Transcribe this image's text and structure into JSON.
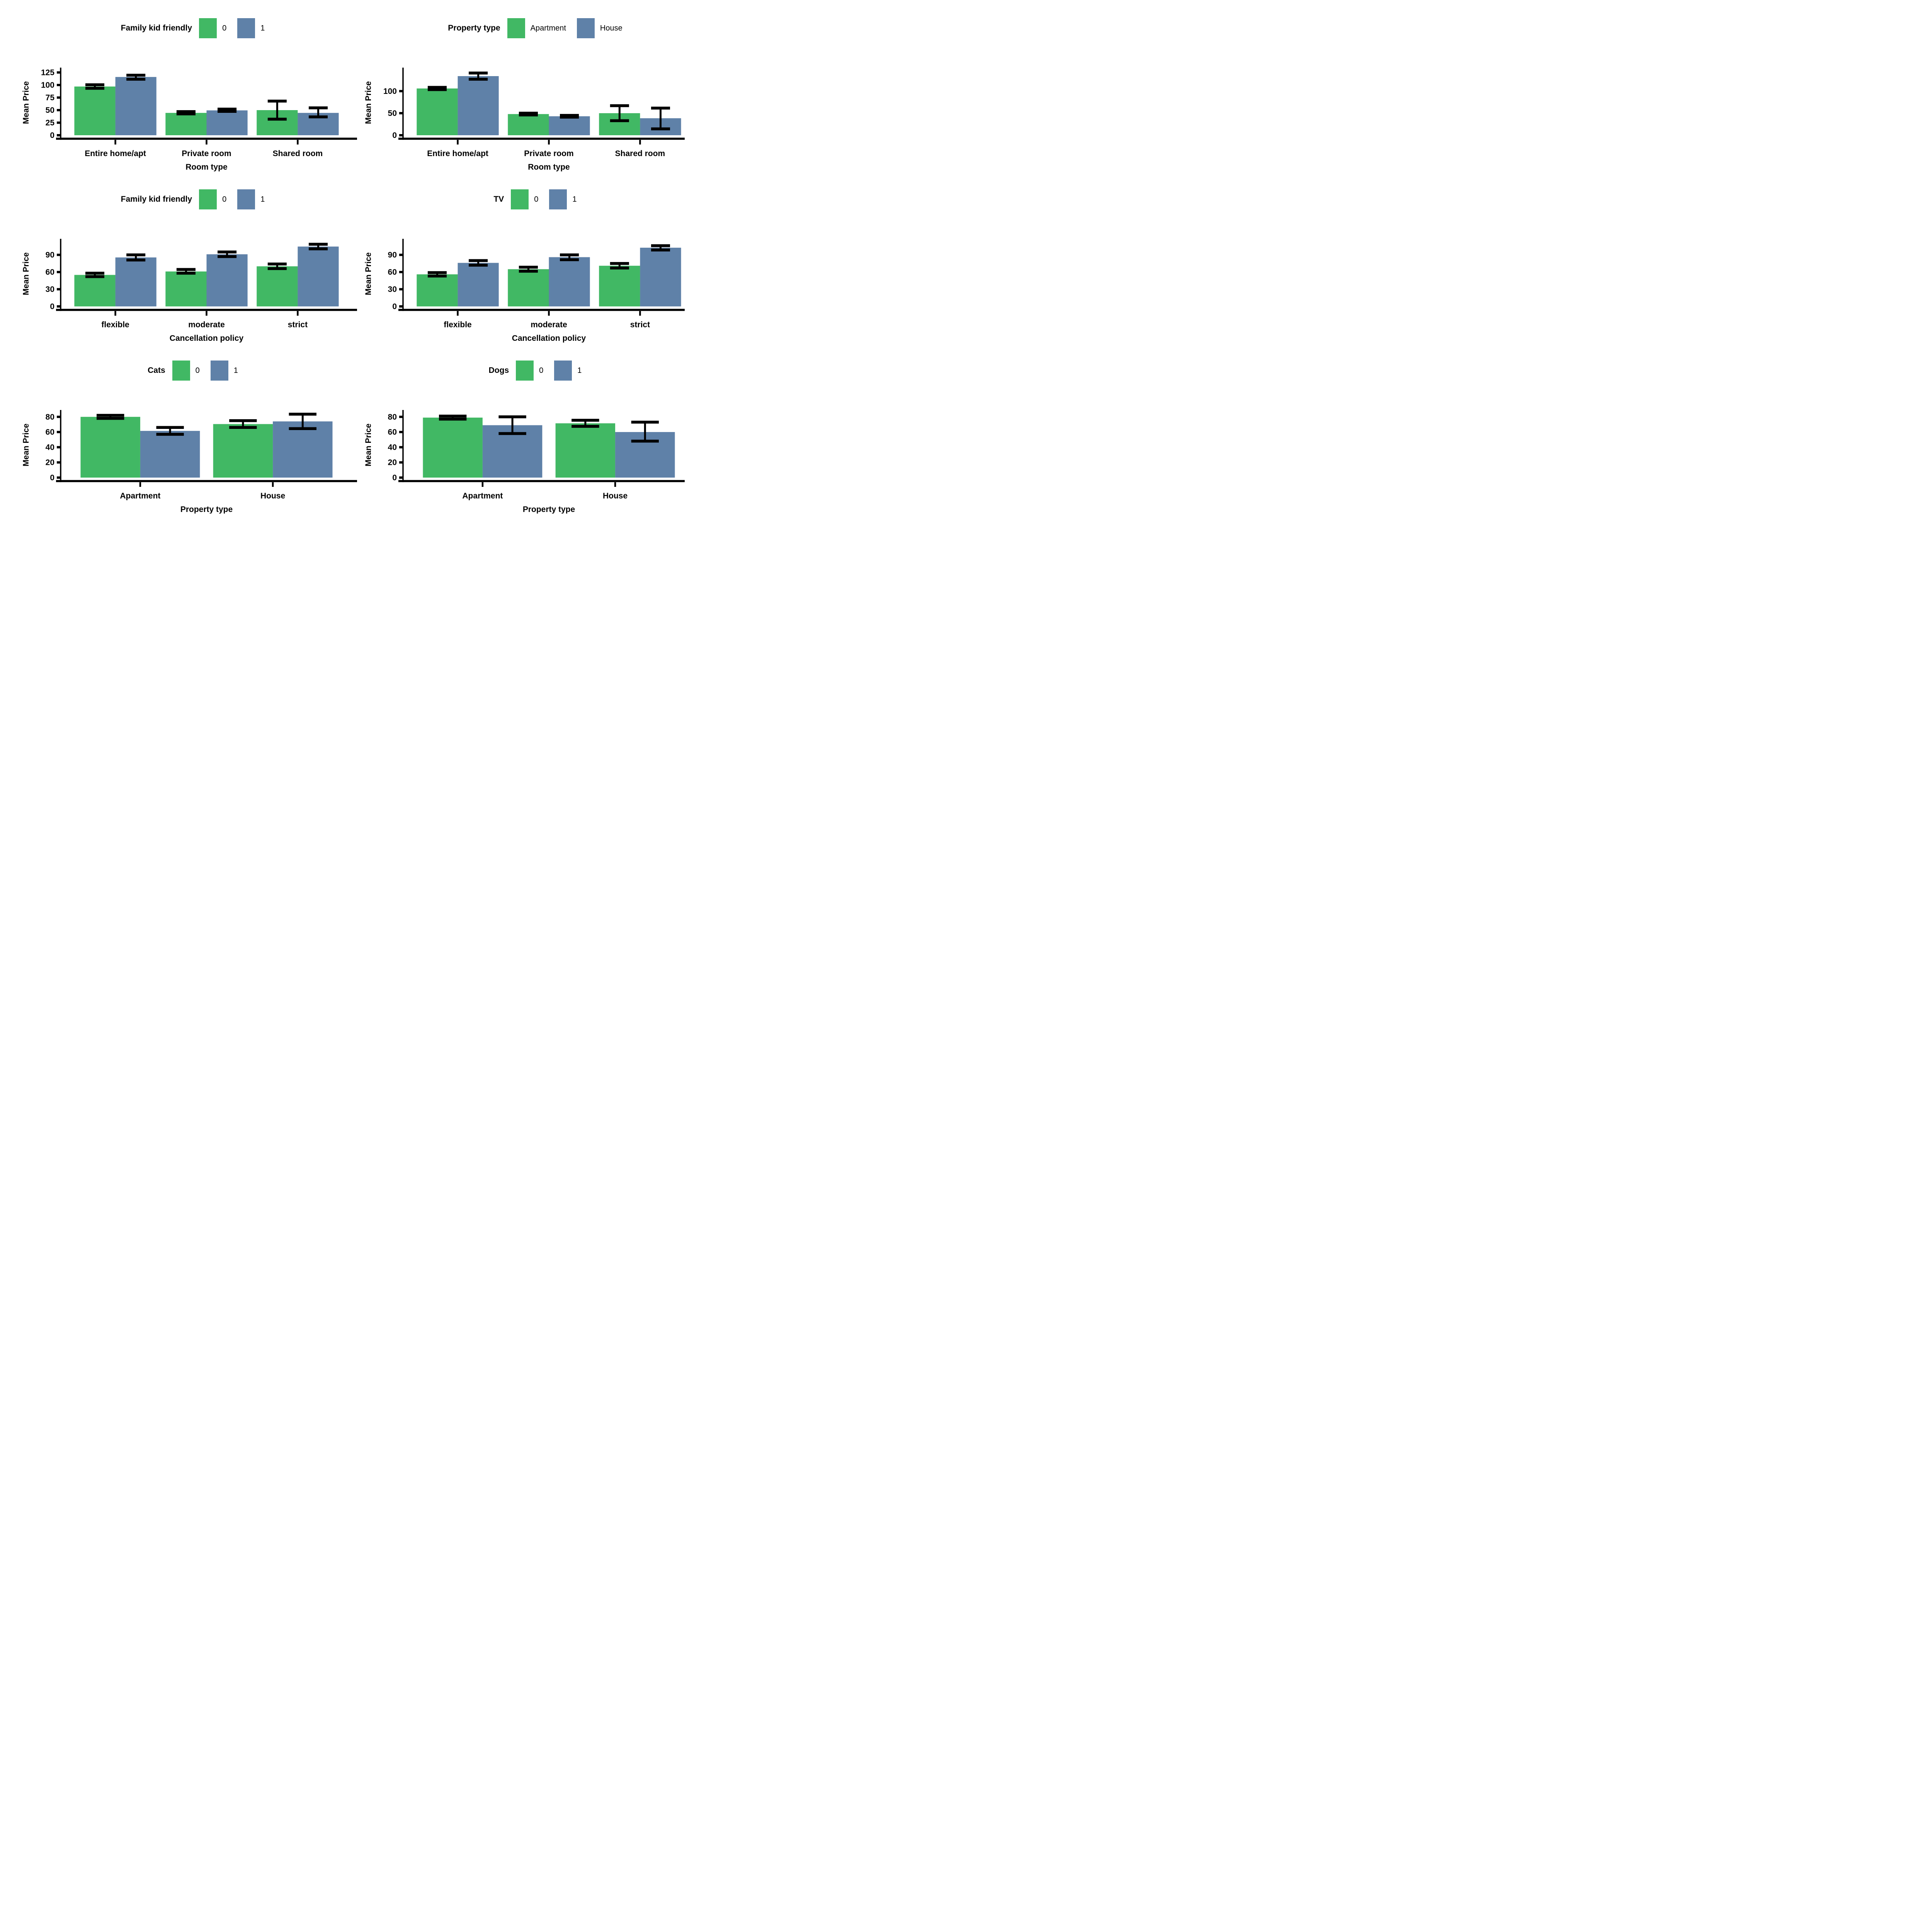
{
  "page": {
    "background": "#ffffff"
  },
  "colors": {
    "green": "#41b864",
    "blue": "#5f81a8",
    "error_bar": "#000000",
    "axis": "#000000",
    "text": "#000000"
  },
  "chart_data": [
    {
      "type": "bar",
      "legend_title": "Family kid friendly",
      "legend_labels": [
        "0",
        "1"
      ],
      "categories": [
        "Entire home/apt",
        "Private room",
        "Shared room"
      ],
      "xlabel": "Room type",
      "ylabel": "Mean Price",
      "yticks": [
        0,
        25,
        50,
        75,
        100,
        125
      ],
      "ylim": [
        0,
        130
      ],
      "grid": false,
      "legend_position": "top",
      "series": [
        {
          "name": "0",
          "color_key": "green",
          "values": [
            97,
            44.5,
            50
          ],
          "err_lo": [
            93.5,
            42.5,
            32
          ],
          "err_hi": [
            100.5,
            47,
            68
          ]
        },
        {
          "name": "1",
          "color_key": "blue",
          "values": [
            116,
            49.5,
            44.5
          ],
          "err_lo": [
            111.5,
            47.5,
            36.5
          ],
          "err_hi": [
            119.5,
            52,
            54.5
          ]
        }
      ]
    },
    {
      "type": "bar",
      "legend_title": "Property type",
      "legend_labels": [
        "Apartment",
        "House"
      ],
      "categories": [
        "Entire home/apt",
        "Private room",
        "Shared room"
      ],
      "xlabel": "Room type",
      "ylabel": "Mean Price",
      "yticks": [
        0,
        50,
        100
      ],
      "ylim": [
        0,
        148
      ],
      "grid": false,
      "legend_position": "top",
      "series": [
        {
          "name": "Apartment",
          "color_key": "green",
          "values": [
            106,
            48,
            50
          ],
          "err_lo": [
            103.5,
            46,
            33
          ],
          "err_hi": [
            108.5,
            50,
            67
          ]
        },
        {
          "name": "House",
          "color_key": "blue",
          "values": [
            134,
            43,
            38.5
          ],
          "err_lo": [
            127,
            41,
            14.5
          ],
          "err_hi": [
            141,
            45,
            61.5
          ]
        }
      ]
    },
    {
      "type": "bar",
      "legend_title": "Family kid friendly",
      "legend_labels": [
        "0",
        "1"
      ],
      "categories": [
        "flexible",
        "moderate",
        "strict"
      ],
      "xlabel": "Cancellation policy",
      "ylabel": "Mean Price",
      "yticks": [
        0,
        30,
        60,
        90
      ],
      "ylim": [
        0,
        114
      ],
      "grid": false,
      "legend_position": "top",
      "series": [
        {
          "name": "0",
          "color_key": "green",
          "values": [
            55,
            61,
            70
          ],
          "err_lo": [
            52,
            58,
            66
          ],
          "err_hi": [
            58,
            64.5,
            74
          ]
        },
        {
          "name": "1",
          "color_key": "blue",
          "values": [
            85.5,
            91,
            104.5
          ],
          "err_lo": [
            81,
            87,
            100.5
          ],
          "err_hi": [
            90,
            95,
            108.5
          ]
        }
      ]
    },
    {
      "type": "bar",
      "legend_title": "TV",
      "legend_labels": [
        "0",
        "1"
      ],
      "categories": [
        "flexible",
        "moderate",
        "strict"
      ],
      "xlabel": "Cancellation policy",
      "ylabel": "Mean Price",
      "yticks": [
        0,
        30,
        60,
        90
      ],
      "ylim": [
        0,
        114
      ],
      "grid": false,
      "legend_position": "top",
      "series": [
        {
          "name": "0",
          "color_key": "green",
          "values": [
            56,
            65,
            71
          ],
          "err_lo": [
            53,
            61.5,
            67
          ],
          "err_hi": [
            59,
            68.5,
            75
          ]
        },
        {
          "name": "1",
          "color_key": "blue",
          "values": [
            76,
            86,
            102.5
          ],
          "err_lo": [
            72,
            81.5,
            98.5
          ],
          "err_hi": [
            80,
            90,
            106
          ]
        }
      ]
    },
    {
      "type": "bar",
      "legend_title": "Cats",
      "legend_labels": [
        "0",
        "1"
      ],
      "categories": [
        "Apartment",
        "House"
      ],
      "xlabel": "Property type",
      "ylabel": "Mean Price",
      "yticks": [
        0,
        20,
        40,
        60,
        80
      ],
      "ylim": [
        0,
        86
      ],
      "grid": false,
      "legend_position": "top",
      "series": [
        {
          "name": "0",
          "color_key": "green",
          "values": [
            80,
            70.5
          ],
          "err_lo": [
            78,
            66
          ],
          "err_hi": [
            82,
            75
          ]
        },
        {
          "name": "1",
          "color_key": "blue",
          "values": [
            61.5,
            74
          ],
          "err_lo": [
            57,
            64.5
          ],
          "err_hi": [
            66,
            83.5
          ]
        }
      ]
    },
    {
      "type": "bar",
      "legend_title": "Dogs",
      "legend_labels": [
        "0",
        "1"
      ],
      "categories": [
        "Apartment",
        "House"
      ],
      "xlabel": "Property type",
      "ylabel": "Mean Price",
      "yticks": [
        0,
        20,
        40,
        60,
        80
      ],
      "ylim": [
        0,
        86
      ],
      "grid": false,
      "legend_position": "top",
      "series": [
        {
          "name": "0",
          "color_key": "green",
          "values": [
            79,
            71.5
          ],
          "err_lo": [
            77,
            67.5
          ],
          "err_hi": [
            81,
            75.5
          ]
        },
        {
          "name": "1",
          "color_key": "blue",
          "values": [
            69,
            60
          ],
          "err_lo": [
            58,
            48
          ],
          "err_hi": [
            80,
            73
          ]
        }
      ]
    }
  ]
}
